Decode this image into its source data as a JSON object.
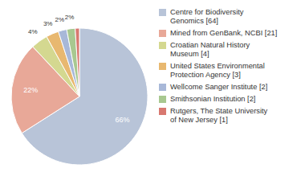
{
  "chart_data": {
    "type": "pie",
    "categories": [
      "Centre for Biodiversity\nGenomics [64]",
      "Mined from GenBank, NCBI [21]",
      "Croatian Natural History\nMuseum [4]",
      "United States Environmental\nProtection Agency [3]",
      "Wellcome Sanger Institute [2]",
      "Smithsonian Institution [2]",
      "Rutgers, The State University\nof New Jersey [1]"
    ],
    "values": [
      66,
      22,
      4,
      3,
      2,
      2,
      1
    ],
    "value_labels": [
      "66%",
      "22%",
      "4%",
      "3%",
      "2%",
      "2%",
      null
    ],
    "colors": [
      "#b8c4d8",
      "#e8a898",
      "#d4d890",
      "#e8b870",
      "#a8b8d8",
      "#a8c890",
      "#d87870"
    ],
    "data_labels": true,
    "legend": "upper right"
  }
}
